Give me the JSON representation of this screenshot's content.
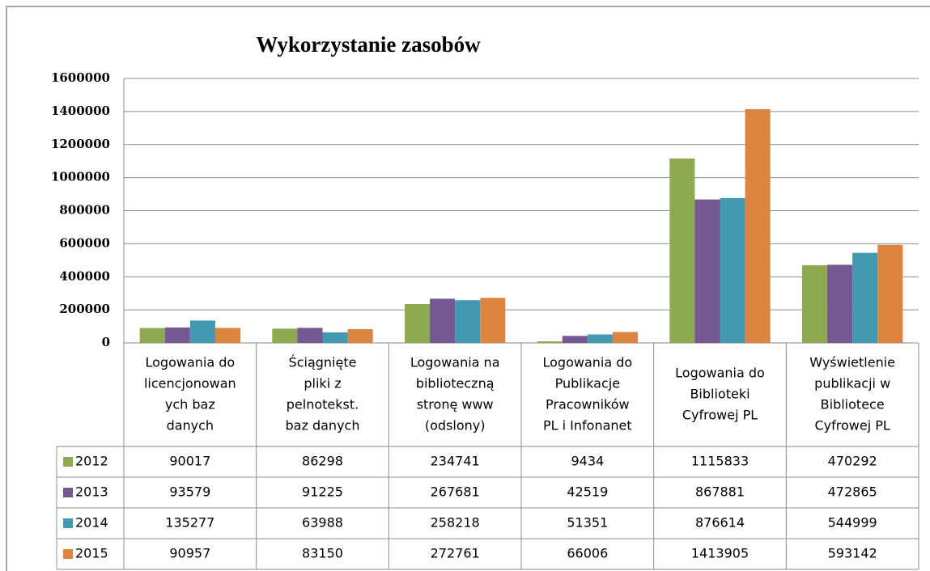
{
  "chart_data": {
    "type": "bar",
    "title": "Wykorzystanie zasobów",
    "categories": [
      [
        "Logowania do",
        "licencjonowan",
        "ych baz",
        "danych"
      ],
      [
        "Ściągnięte",
        "pliki z",
        "pelnotekst.",
        "baz danych"
      ],
      [
        "Logowania na",
        "biblioteczną",
        "stronę www",
        "(odslony)"
      ],
      [
        "Logowania do",
        "Publikacje",
        "Pracowników",
        "PL i Infonanet"
      ],
      [
        "Logowania do",
        "Biblioteki",
        "Cyfrowej PL"
      ],
      [
        "Wyświetlenie",
        "publikacji w",
        "Bibliotece",
        "Cyfrowej PL"
      ]
    ],
    "series": [
      {
        "name": "2012",
        "color": "#8eaa4f",
        "values": [
          90017,
          86298,
          234741,
          9434,
          1115833,
          470292
        ]
      },
      {
        "name": "2013",
        "color": "#735892",
        "values": [
          93579,
          91225,
          267681,
          42519,
          867881,
          472865
        ]
      },
      {
        "name": "2014",
        "color": "#4399b1",
        "values": [
          135277,
          63988,
          258218,
          51351,
          876614,
          544999
        ]
      },
      {
        "name": "2015",
        "color": "#dd8540",
        "values": [
          90957,
          83150,
          272761,
          66006,
          1413905,
          593142
        ]
      }
    ],
    "ylim": [
      0,
      1600000
    ],
    "yticks": [
      0,
      200000,
      400000,
      600000,
      800000,
      1000000,
      1200000,
      1400000,
      1600000
    ],
    "grid": true
  }
}
